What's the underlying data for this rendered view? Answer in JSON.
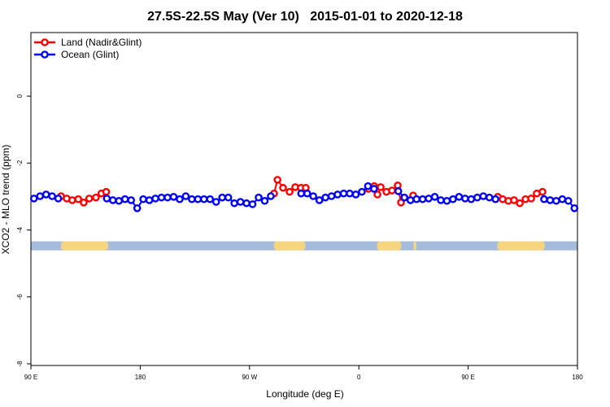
{
  "chart_data": {
    "type": "line",
    "title": "27.5S-22.5S May (Ver 10)   2015-01-01 to 2020-12-18",
    "x_label": "Longitude (deg E)",
    "y_label": "XCO2 - MLO trend (ppm)",
    "xlim": [
      90,
      540
    ],
    "ylim": [
      -8.05,
      1.9
    ],
    "xticks": [
      {
        "value": 90,
        "label": "90 E"
      },
      180,
      {
        "value": 270,
        "label": "90 W"
      },
      {
        "value": 360,
        "label": "0"
      },
      {
        "value": 450,
        "label": "90 E"
      },
      {
        "value": 540,
        "label": "180"
      }
    ],
    "yticks": [
      -8,
      -6,
      -4,
      -2,
      0
    ],
    "legend": "top-left",
    "band": {
      "y": [
        -4.34,
        -4.61
      ],
      "color": "#a4bbdc",
      "land_color": "#f5d57f",
      "land": [
        [
          114.8,
          153.6
        ],
        [
          290,
          316
        ],
        [
          375,
          395
        ],
        [
          405,
          407.5
        ],
        [
          474,
          513
        ]
      ]
    },
    "series": [
      {
        "name": "Land (Nadir&Glint)",
        "color": "#ff0000",
        "x": [
          114.8,
          119.5,
          124,
          129,
          133.5,
          138,
          143.5,
          148,
          152,
          220,
          290.2,
          293,
          297.6,
          303,
          307.6,
          312.3,
          316.3,
          340,
          368,
          372.6,
          375.3,
          378,
          382.7,
          387.3,
          392,
          394.7,
          404.7,
          440,
          474.4,
          478.4,
          483.1,
          487.8,
          492.5,
          497.2,
          501.9,
          506.5,
          511.2
        ],
        "values": [
          -2.99,
          -3.06,
          -3.11,
          -3.08,
          -3.18,
          -3.06,
          -3.03,
          -2.91,
          -2.86,
          null,
          -2.91,
          -2.5,
          -2.74,
          -2.86,
          -2.72,
          -2.74,
          -2.74,
          null,
          -2.77,
          -2.69,
          -2.94,
          -2.72,
          -2.86,
          -2.82,
          -2.67,
          -3.18,
          -2.97,
          null,
          -3.01,
          -3.08,
          -3.13,
          -3.11,
          -3.2,
          -3.08,
          -3.06,
          -2.91,
          -2.86
        ]
      },
      {
        "name": "Ocean (Glint)",
        "color": "#0000ff",
        "x": [
          92.5,
          97.5,
          102.5,
          107.5,
          112.5,
          117.5,
          152.5,
          157.5,
          162.5,
          167.5,
          172.5,
          177.5,
          182.5,
          187.5,
          192.5,
          197.5,
          202.5,
          207.5,
          212.5,
          217.5,
          222.5,
          227.5,
          232.5,
          237.5,
          242.5,
          247.5,
          252.5,
          257.5,
          262.5,
          267.5,
          272.5,
          277.5,
          282.5,
          287.5,
          292.5,
          312.5,
          317.5,
          322.5,
          327.5,
          332.5,
          337.5,
          342.5,
          347.5,
          352.5,
          357.5,
          362.5,
          367.5,
          372.5,
          377.5,
          392.5,
          397.5,
          402.5,
          407.5,
          412.5,
          417.5,
          422.5,
          427.5,
          432.5,
          437.5,
          442.5,
          447.5,
          452.5,
          457.5,
          462.5,
          467.5,
          472.5,
          477.5,
          512.5,
          517.5,
          522.5,
          527.5,
          532.5,
          537.5
        ],
        "values": [
          -3.06,
          -2.99,
          -2.94,
          -2.99,
          -3.06,
          null,
          -3.06,
          -3.11,
          -3.13,
          -3.08,
          -3.11,
          -3.35,
          -3.08,
          -3.11,
          -3.06,
          -3.03,
          -3.03,
          -3.01,
          -3.08,
          -2.99,
          -3.08,
          -3.08,
          -3.08,
          -3.08,
          -3.16,
          -3.03,
          -3.03,
          -3.2,
          -3.16,
          -3.2,
          -3.23,
          -3.03,
          -3.13,
          -2.99,
          null,
          -2.91,
          -2.91,
          -2.99,
          -3.11,
          -3.03,
          -2.99,
          -2.94,
          -2.91,
          -2.91,
          -2.94,
          -2.86,
          -2.69,
          -2.77,
          null,
          -2.84,
          -3.03,
          -3.11,
          -3.08,
          -3.08,
          -3.06,
          -3.01,
          -3.11,
          -3.13,
          -3.08,
          -3.01,
          -3.06,
          -3.08,
          -3.03,
          -2.99,
          -3.03,
          -3.08,
          null,
          -3.08,
          -3.11,
          -3.13,
          -3.08,
          -3.13,
          -3.35
        ]
      }
    ]
  }
}
